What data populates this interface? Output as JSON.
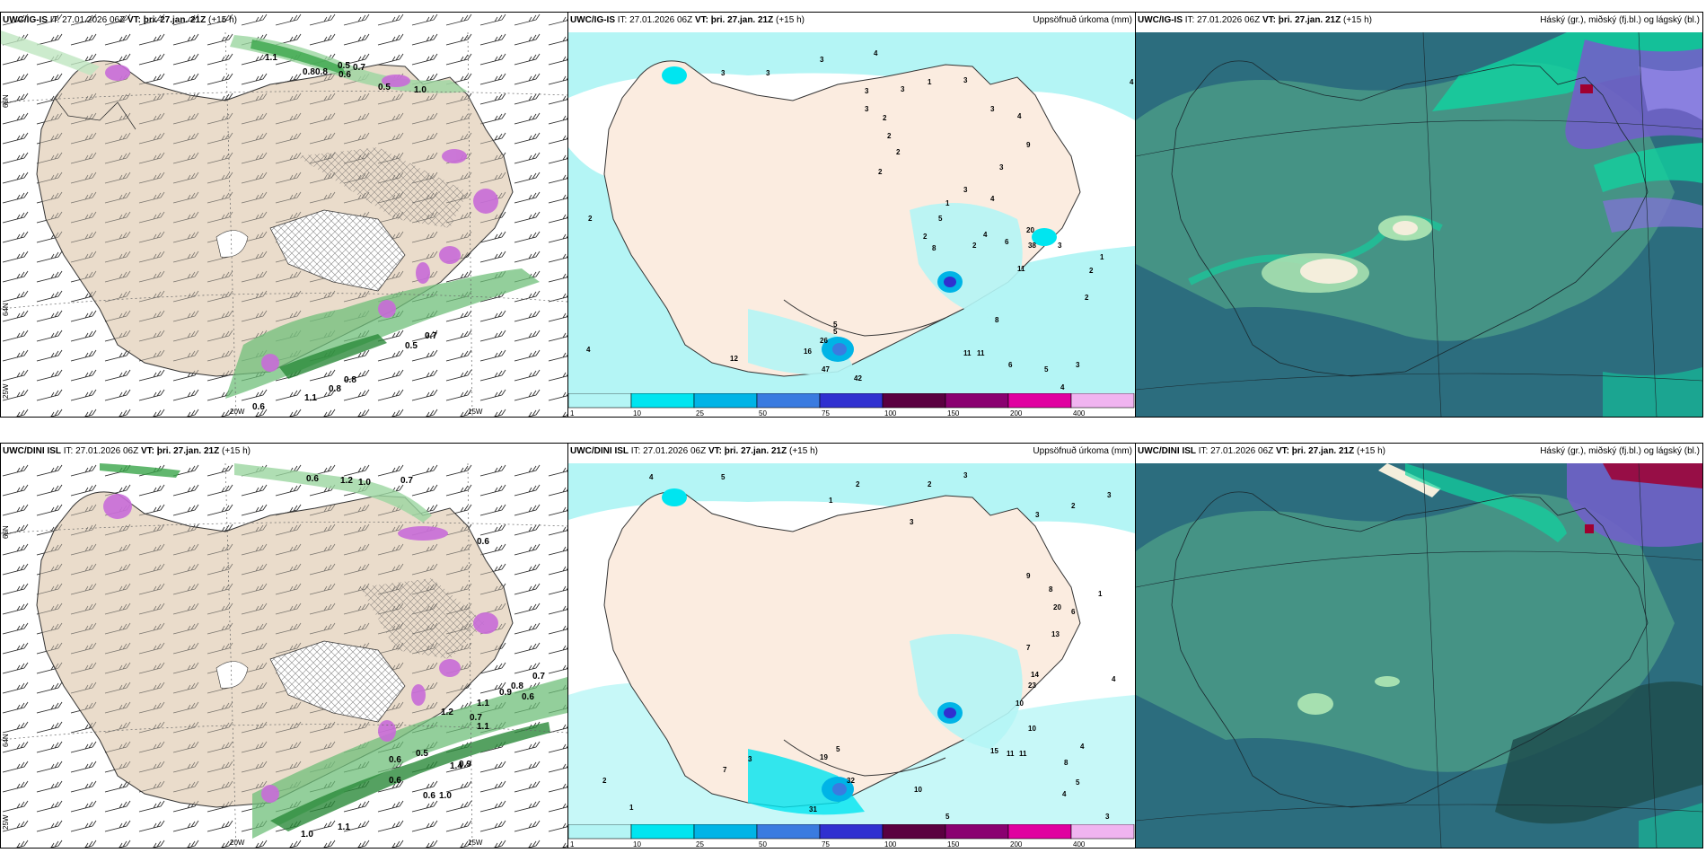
{
  "panels": {
    "top_left": {
      "model": "UWC/IG-IS",
      "it": "IT: 27.01.2026 06Z",
      "vt_label": "VT:",
      "vt": "þri. 27.jan. 21Z",
      "lead": "(+15 h)"
    },
    "top_mid": {
      "model": "UWC/IG-IS",
      "it": "IT: 27.01.2026 06Z",
      "vt_label": "VT:",
      "vt": "þri. 27.jan. 21Z",
      "lead": "(+15 h)",
      "title_right": "Uppsöfnuð úrkoma (mm)"
    },
    "top_right": {
      "model": "UWC/IG-IS",
      "it": "IT: 27.01.2026 06Z",
      "vt_label": "VT:",
      "vt": "þri. 27.jan. 21Z",
      "lead": "(+15 h)",
      "title_right": "Háský (gr.), miðský (fj.bl.) og lágský (bl.)"
    },
    "bot_left": {
      "model": "UWC/DINI ISL",
      "it": "IT: 27.01.2026 06Z",
      "vt_label": "VT:",
      "vt": "þri. 27.jan. 21Z",
      "lead": "(+15 h)"
    },
    "bot_mid": {
      "model": "UWC/DINI ISL",
      "it": "IT: 27.01.2026 06Z",
      "vt_label": "VT:",
      "vt": "þri. 27.jan. 21Z",
      "lead": "(+15 h)",
      "title_right": "Uppsöfnuð úrkoma (mm)"
    },
    "bot_right": {
      "model": "UWC/DINI ISL",
      "it": "IT: 27.01.2026 06Z",
      "vt_label": "VT:",
      "vt": "þri. 27.jan. 21Z",
      "lead": "(+15 h)",
      "title_right": "Háský (gr.), miðský (fj.bl.) og lágský (bl.)"
    }
  },
  "axes": {
    "lat_66": "66N",
    "lat_64": "64N",
    "lon_25": "25W",
    "lon_20": "20W",
    "lon_15": "15W"
  },
  "precip_scale": {
    "labels": [
      "1",
      "10",
      "25",
      "50",
      "75",
      "100",
      "150",
      "200",
      "400"
    ],
    "colors": [
      "#b4f5f5",
      "#00e5f0",
      "#00b4e6",
      "#3a7be0",
      "#3030d0",
      "#5a0040",
      "#8a0070",
      "#e000a0",
      "#f0b4f0"
    ]
  },
  "top_left_values": [
    "1.1",
    "0.8",
    "0.8",
    "0.5",
    "0.7",
    "0.6",
    "0.5",
    "1.0",
    "0.5",
    "0.7",
    "0.8",
    "0.8",
    "0.6",
    "1.1"
  ],
  "bot_left_values": [
    "0.6",
    "1.2",
    "1.0",
    "0.7",
    "0.6",
    "0.7",
    "0.8",
    "0.9",
    "0.6",
    "1.1",
    "0.7",
    "1.1",
    "1.2",
    "0.5",
    "0.6",
    "0.6",
    "0.6",
    "1.0",
    "1.1",
    "0.9",
    "1.4",
    "1.0"
  ],
  "top_mid_values": [
    "3",
    "3",
    "3",
    "4",
    "3",
    "1",
    "3",
    "3",
    "3",
    "4",
    "2",
    "3",
    "2",
    "2",
    "2",
    "9",
    "3",
    "3",
    "4",
    "2",
    "5",
    "1",
    "8",
    "2",
    "4",
    "6",
    "20",
    "38",
    "11",
    "3",
    "2",
    "1",
    "4",
    "8",
    "2",
    "11",
    "11",
    "6",
    "5",
    "3",
    "4",
    "5",
    "26",
    "12",
    "47",
    "42",
    "16",
    "5",
    "2",
    "4"
  ],
  "bot_mid_values": [
    "4",
    "5",
    "2",
    "2",
    "3",
    "1",
    "3",
    "3",
    "2",
    "3",
    "9",
    "8",
    "20",
    "6",
    "1",
    "13",
    "7",
    "14",
    "23",
    "10",
    "10",
    "15",
    "11",
    "11",
    "8",
    "4",
    "5",
    "4",
    "7",
    "19",
    "5",
    "32",
    "10",
    "31",
    "3",
    "5",
    "1",
    "2",
    "4",
    "3"
  ]
}
